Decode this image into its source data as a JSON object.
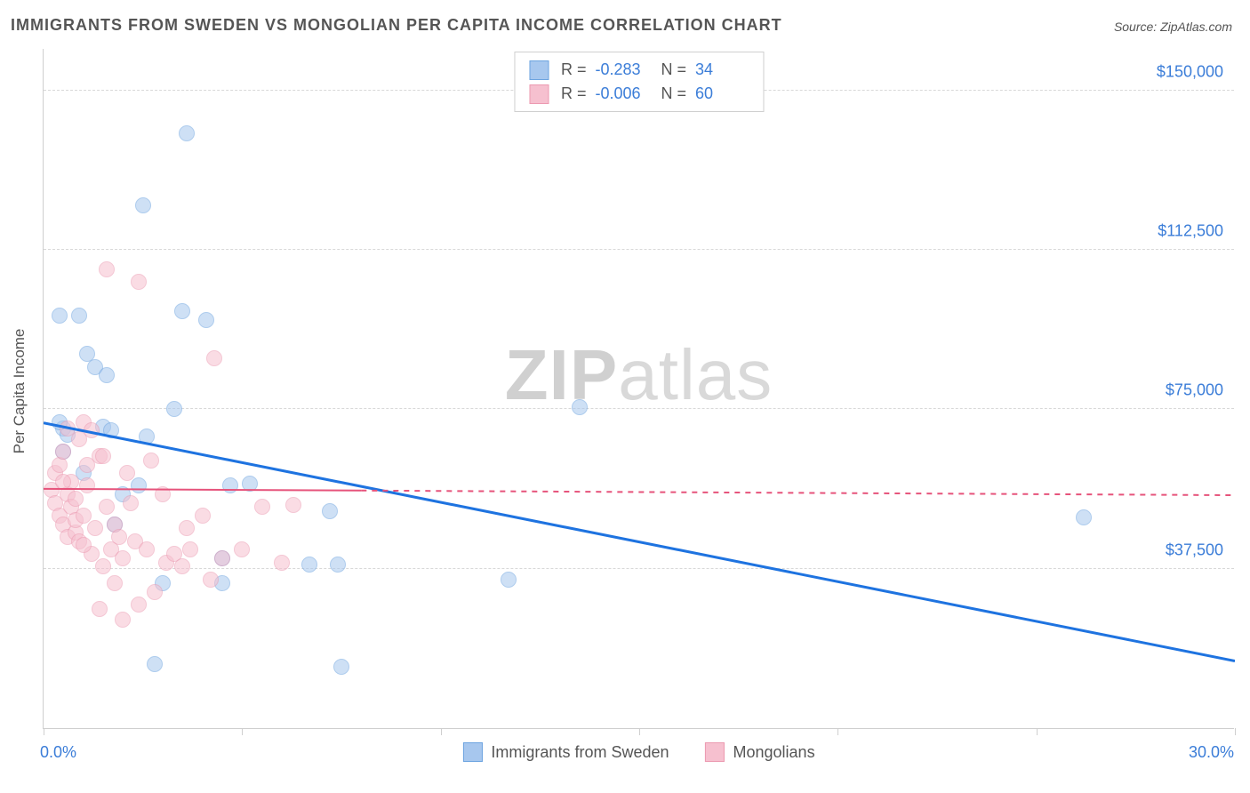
{
  "title": "IMMIGRANTS FROM SWEDEN VS MONGOLIAN PER CAPITA INCOME CORRELATION CHART",
  "source": "Source: ZipAtlas.com",
  "watermark": {
    "bold": "ZIP",
    "rest": "atlas"
  },
  "chart": {
    "type": "scatter",
    "xlabel": "",
    "ylabel": "Per Capita Income",
    "xlim": [
      0,
      30
    ],
    "ylim": [
      0,
      160000
    ],
    "xticks": [
      0,
      5,
      10,
      15,
      20,
      25,
      30
    ],
    "xtick_labels": {
      "0": "0.0%",
      "30": "30.0%"
    },
    "yticks": [
      37500,
      75000,
      112500,
      150000
    ],
    "ytick_labels": [
      "$37,500",
      "$75,000",
      "$112,500",
      "$150,000"
    ],
    "grid_color": "#d8d8d8",
    "axis_color": "#cfcfcf",
    "background_color": "#ffffff",
    "label_color": "#3b7dd8",
    "text_color": "#555555",
    "title_fontsize": 18,
    "tick_fontsize": 18,
    "marker_radius": 9,
    "marker_opacity": 0.55,
    "series": [
      {
        "name": "Immigrants from Sweden",
        "color_fill": "#a7c7ee",
        "color_stroke": "#6da4e0",
        "R": "-0.283",
        "N": "34",
        "trend": {
          "x1": 0,
          "y1": 72000,
          "x2": 30,
          "y2": 16000,
          "color": "#1e73e0",
          "width": 3,
          "dash_after_x": null
        },
        "points": [
          [
            0.4,
            97000
          ],
          [
            0.9,
            97000
          ],
          [
            0.5,
            70500
          ],
          [
            0.6,
            69000
          ],
          [
            0.5,
            65000
          ],
          [
            1.1,
            88000
          ],
          [
            1.3,
            85000
          ],
          [
            1.6,
            83000
          ],
          [
            1.5,
            71000
          ],
          [
            1.7,
            70000
          ],
          [
            2.6,
            68500
          ],
          [
            2.0,
            55000
          ],
          [
            2.4,
            57000
          ],
          [
            2.8,
            15000
          ],
          [
            3.0,
            34000
          ],
          [
            3.3,
            75000
          ],
          [
            3.5,
            98000
          ],
          [
            3.6,
            140000
          ],
          [
            4.1,
            96000
          ],
          [
            4.7,
            57000
          ],
          [
            4.5,
            40000
          ],
          [
            4.5,
            34000
          ],
          [
            5.2,
            57500
          ],
          [
            2.5,
            123000
          ],
          [
            6.7,
            38500
          ],
          [
            7.4,
            38500
          ],
          [
            7.2,
            51000
          ],
          [
            7.5,
            14500
          ],
          [
            11.7,
            35000
          ],
          [
            13.5,
            75500
          ],
          [
            26.2,
            49500
          ],
          [
            0.4,
            72000
          ],
          [
            1.0,
            60000
          ],
          [
            1.8,
            48000
          ]
        ]
      },
      {
        "name": "Mongolians",
        "color_fill": "#f6c0cf",
        "color_stroke": "#ec9ab1",
        "R": "-0.006",
        "N": "60",
        "trend": {
          "x1": 0,
          "y1": 56500,
          "x2": 30,
          "y2": 55000,
          "color": "#e6537b",
          "width": 2,
          "dash_after_x": 8.0
        },
        "points": [
          [
            0.2,
            56000
          ],
          [
            0.3,
            53000
          ],
          [
            0.3,
            60000
          ],
          [
            0.4,
            50000
          ],
          [
            0.4,
            62000
          ],
          [
            0.5,
            48000
          ],
          [
            0.5,
            65000
          ],
          [
            0.6,
            55000
          ],
          [
            0.6,
            45000
          ],
          [
            0.6,
            70500
          ],
          [
            0.7,
            52000
          ],
          [
            0.7,
            58000
          ],
          [
            0.8,
            46000
          ],
          [
            0.8,
            54000
          ],
          [
            0.8,
            49000
          ],
          [
            0.9,
            68000
          ],
          [
            0.9,
            44000
          ],
          [
            1.0,
            72000
          ],
          [
            1.0,
            50000
          ],
          [
            1.1,
            57000
          ],
          [
            1.1,
            62000
          ],
          [
            1.2,
            41000
          ],
          [
            1.2,
            70000
          ],
          [
            1.3,
            47000
          ],
          [
            1.4,
            64000
          ],
          [
            1.4,
            28000
          ],
          [
            1.5,
            38000
          ],
          [
            1.6,
            108000
          ],
          [
            1.7,
            42000
          ],
          [
            1.8,
            48000
          ],
          [
            1.8,
            34000
          ],
          [
            1.9,
            45000
          ],
          [
            2.0,
            40000
          ],
          [
            2.1,
            60000
          ],
          [
            2.3,
            44000
          ],
          [
            2.4,
            105000
          ],
          [
            2.4,
            29000
          ],
          [
            2.6,
            42000
          ],
          [
            2.7,
            63000
          ],
          [
            2.8,
            32000
          ],
          [
            3.0,
            55000
          ],
          [
            3.1,
            39000
          ],
          [
            3.3,
            41000
          ],
          [
            3.5,
            38000
          ],
          [
            3.6,
            47000
          ],
          [
            3.7,
            42000
          ],
          [
            4.0,
            50000
          ],
          [
            4.2,
            35000
          ],
          [
            4.3,
            87000
          ],
          [
            4.5,
            40000
          ],
          [
            5.0,
            42000
          ],
          [
            5.5,
            52000
          ],
          [
            6.0,
            39000
          ],
          [
            6.3,
            52500
          ],
          [
            2.0,
            25500
          ],
          [
            1.5,
            64000
          ],
          [
            2.2,
            53000
          ],
          [
            0.5,
            58000
          ],
          [
            1.0,
            43000
          ],
          [
            1.6,
            52000
          ]
        ]
      }
    ],
    "legend_bottom": [
      {
        "label": "Immigrants from Sweden",
        "fill": "#a7c7ee",
        "stroke": "#6da4e0"
      },
      {
        "label": "Mongolians",
        "fill": "#f6c0cf",
        "stroke": "#ec9ab1"
      }
    ]
  }
}
